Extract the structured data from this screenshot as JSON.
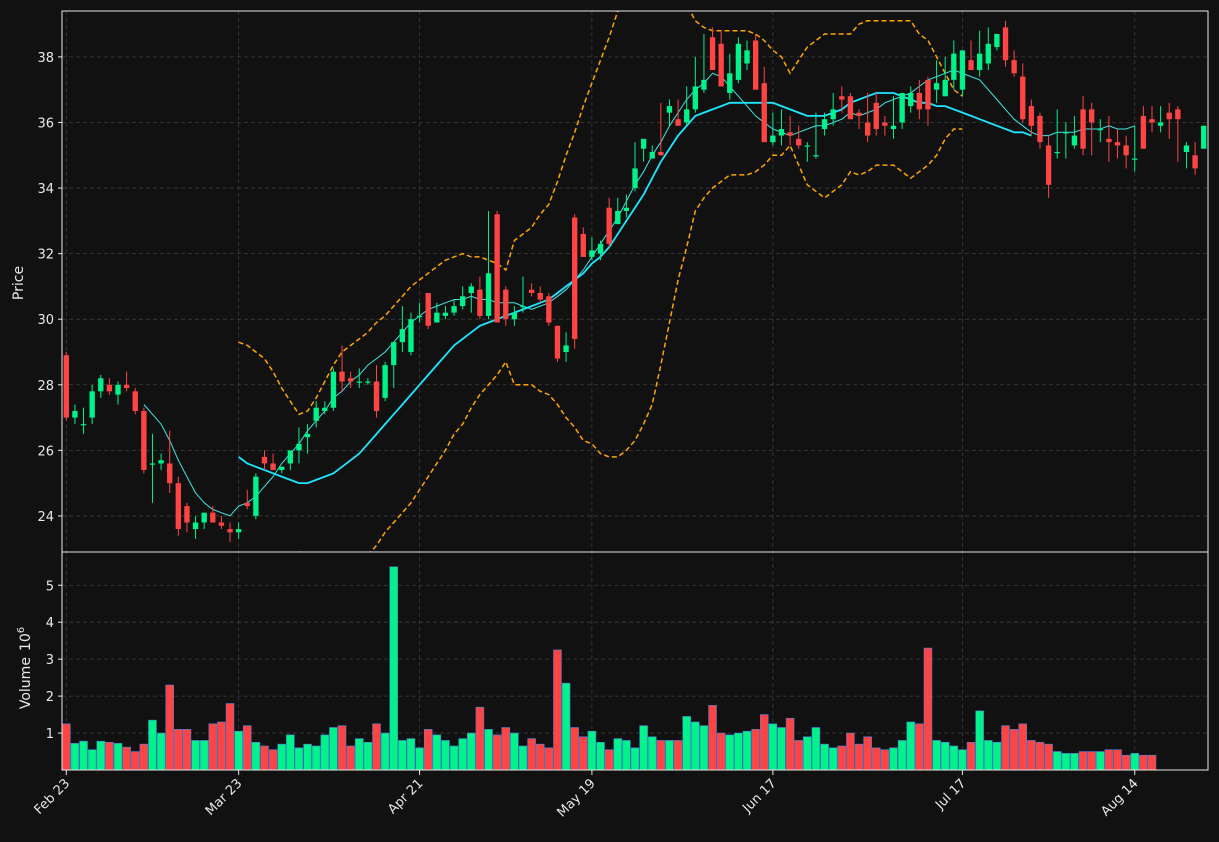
{
  "chart_data": {
    "type": "candlestick",
    "background": "#111111",
    "colors": {
      "up": "#00f28a",
      "down": "#ff4444",
      "volume_edge": "#4a7fd6",
      "mav_fast": "#3ee6e6",
      "mav_slow": "#1ee6ff",
      "bollinger": "#ffa500",
      "grid": "#3c3c3c",
      "text": "#e8e8e8"
    },
    "price_panel": {
      "ylabel": "Price",
      "ylim": [
        22.9,
        39.4
      ],
      "yticks": [
        24,
        26,
        28,
        30,
        32,
        34,
        36,
        38
      ]
    },
    "volume_panel": {
      "ylabel": "Volume",
      "exponent": "6",
      "ylim": [
        0,
        5.9
      ],
      "yticks": [
        1,
        2,
        3,
        4,
        5
      ]
    },
    "xticks": [
      {
        "label": "Feb 23",
        "index": 0
      },
      {
        "label": "Mar 23",
        "index": 20
      },
      {
        "label": "Apr 21",
        "index": 41
      },
      {
        "label": "May 19",
        "index": 61
      },
      {
        "label": "Jun 17",
        "index": 82
      },
      {
        "label": "Jul 17",
        "index": 104
      },
      {
        "label": "Aug 14",
        "index": 124
      }
    ],
    "candles": {
      "open": [
        28.9,
        27.0,
        26.8,
        27.0,
        27.8,
        28.0,
        27.7,
        28.0,
        27.8,
        27.2,
        25.6,
        25.6,
        25.6,
        25.0,
        24.3,
        23.6,
        23.8,
        24.1,
        23.8,
        23.6,
        23.5,
        24.4,
        24.0,
        25.8,
        25.6,
        25.4,
        25.6,
        26.0,
        26.4,
        26.9,
        27.2,
        27.3,
        28.4,
        28.2,
        28.1,
        28.1,
        28.1,
        27.6,
        28.6,
        29.3,
        29.0,
        30.1,
        30.8,
        29.9,
        30.1,
        30.2,
        30.4,
        30.8,
        30.9,
        30.1,
        33.2,
        30.9,
        30.0,
        30.4,
        30.9,
        30.8,
        30.7,
        29.8,
        29.0,
        33.1,
        32.6,
        31.9,
        32.0,
        33.4,
        32.9,
        33.3,
        34.0,
        35.2,
        34.9,
        35.1,
        36.3,
        36.1,
        36.0,
        36.4,
        37.0,
        38.6,
        38.4,
        36.9,
        37.3,
        37.8,
        38.5,
        37.2,
        35.4,
        35.6,
        35.7,
        35.5,
        35.3,
        35.0,
        35.8,
        36.1,
        36.8,
        36.8,
        36.3,
        36.0,
        36.6,
        36.0,
        35.8,
        36.0,
        36.5,
        36.9,
        37.3,
        37.0,
        36.8,
        37.3,
        37.0,
        37.9,
        37.6,
        37.8,
        38.3,
        38.9,
        37.9,
        37.4,
        36.5,
        36.2,
        35.3,
        35.1,
        35.7,
        35.3,
        36.4,
        36.4,
        35.8,
        35.5,
        35.4,
        35.3,
        34.9,
        36.2,
        36.1,
        35.9,
        36.3,
        36.4,
        35.1,
        35.0,
        35.2
      ],
      "high": [
        29.0,
        27.4,
        27.3,
        28.0,
        28.3,
        28.2,
        28.1,
        28.4,
        27.9,
        27.3,
        26.5,
        25.9,
        26.6,
        25.2,
        24.4,
        24.0,
        24.0,
        24.3,
        24.0,
        23.8,
        23.8,
        24.8,
        25.3,
        26.0,
        25.9,
        25.5,
        25.7,
        26.7,
        26.8,
        27.5,
        27.5,
        28.5,
        29.2,
        28.4,
        28.5,
        28.2,
        28.6,
        28.7,
        28.8,
        30.4,
        30.2,
        30.5,
        30.8,
        30.5,
        30.4,
        30.6,
        31.0,
        31.1,
        31.3,
        33.3,
        33.3,
        31.0,
        30.4,
        31.3,
        31.1,
        31.0,
        30.8,
        29.8,
        29.6,
        33.2,
        32.8,
        32.5,
        32.4,
        33.7,
        33.7,
        33.8,
        35.4,
        35.5,
        35.3,
        36.6,
        36.7,
        36.7,
        37.1,
        38.0,
        38.7,
        38.9,
        38.8,
        38.1,
        38.6,
        38.5,
        38.7,
        37.7,
        36.3,
        36.4,
        36.2,
        35.9,
        35.4,
        36.3,
        36.3,
        36.9,
        37.1,
        36.9,
        36.4,
        36.9,
        36.9,
        36.2,
        36.8,
        36.5,
        37.1,
        37.3,
        37.4,
        37.9,
        38.0,
        38.5,
        38.1,
        38.5,
        38.8,
        38.9,
        38.6,
        39.1,
        38.2,
        37.8,
        36.7,
        36.3,
        35.6,
        36.4,
        36.0,
        36.2,
        36.8,
        36.6,
        36.1,
        36.2,
        35.8,
        35.6,
        35.9,
        36.5,
        36.5,
        36.5,
        36.6,
        36.5,
        35.4,
        35.4,
        35.9
      ],
      "low": [
        26.9,
        26.8,
        26.5,
        26.8,
        27.6,
        27.7,
        27.4,
        27.8,
        27.1,
        25.3,
        24.4,
        25.4,
        24.7,
        23.4,
        23.5,
        23.3,
        23.6,
        23.8,
        23.6,
        23.2,
        23.3,
        24.2,
        23.9,
        25.4,
        25.4,
        25.3,
        25.4,
        25.6,
        25.9,
        26.7,
        27.1,
        27.2,
        27.8,
        27.9,
        27.9,
        28.0,
        27.0,
        27.5,
        27.9,
        29.0,
        28.9,
        29.9,
        29.7,
        29.9,
        30.0,
        30.1,
        30.3,
        30.2,
        30.0,
        30.0,
        30.9,
        29.8,
        29.8,
        30.2,
        30.7,
        30.5,
        29.8,
        28.7,
        28.7,
        29.1,
        31.9,
        31.8,
        31.8,
        32.2,
        32.9,
        33.1,
        33.9,
        34.8,
        34.9,
        35.0,
        35.9,
        35.9,
        35.9,
        36.3,
        36.9,
        37.7,
        37.8,
        36.7,
        37.2,
        37.6,
        37.8,
        36.9,
        35.3,
        35.3,
        35.3,
        35.2,
        34.8,
        34.9,
        35.6,
        35.9,
        36.3,
        36.3,
        35.8,
        35.4,
        35.6,
        35.6,
        35.5,
        35.8,
        36.3,
        36.1,
        35.9,
        36.6,
        36.8,
        37.0,
        36.8,
        37.6,
        37.4,
        37.6,
        38.2,
        37.7,
        37.4,
        36.0,
        35.6,
        35.2,
        33.7,
        34.9,
        34.9,
        35.2,
        35.0,
        35.0,
        35.4,
        34.8,
        34.9,
        34.6,
        34.5,
        35.5,
        35.7,
        35.7,
        35.5,
        34.8,
        34.6,
        34.4,
        35.2
      ],
      "close": [
        27.0,
        27.2,
        26.8,
        27.8,
        28.2,
        27.8,
        28.0,
        27.9,
        27.2,
        25.4,
        25.6,
        25.7,
        25.0,
        23.6,
        23.8,
        23.8,
        24.1,
        23.8,
        23.7,
        23.5,
        23.6,
        24.3,
        25.2,
        25.6,
        25.4,
        25.5,
        26.0,
        26.2,
        26.5,
        27.3,
        27.3,
        28.4,
        28.1,
        28.1,
        28.1,
        28.1,
        27.2,
        28.6,
        29.3,
        29.7,
        30.0,
        30.1,
        29.8,
        30.2,
        30.2,
        30.4,
        30.7,
        31.0,
        30.1,
        31.4,
        29.9,
        30.0,
        30.2,
        30.4,
        30.8,
        30.6,
        29.9,
        28.8,
        29.2,
        29.4,
        31.9,
        32.1,
        32.3,
        32.3,
        33.3,
        33.4,
        34.6,
        35.5,
        35.1,
        35.0,
        36.5,
        35.9,
        36.4,
        37.1,
        37.3,
        37.6,
        37.1,
        37.5,
        38.4,
        38.2,
        37.0,
        35.4,
        35.6,
        35.8,
        35.6,
        35.3,
        35.3,
        35.0,
        36.1,
        36.4,
        36.7,
        36.1,
        36.2,
        35.6,
        35.8,
        35.9,
        35.9,
        36.9,
        36.9,
        36.4,
        36.4,
        37.2,
        37.3,
        38.1,
        38.2,
        37.6,
        38.1,
        38.4,
        38.7,
        37.9,
        37.5,
        36.1,
        35.9,
        35.4,
        34.1,
        35.1,
        35.7,
        35.6,
        35.2,
        36.0,
        35.8,
        35.4,
        35.3,
        35.0,
        34.9,
        35.2,
        36.0,
        36.0,
        36.1,
        36.1,
        35.3,
        34.6,
        35.9
      ]
    },
    "volume": [
      1.25,
      0.72,
      0.78,
      0.55,
      0.78,
      0.75,
      0.72,
      0.62,
      0.5,
      0.7,
      1.35,
      1.0,
      2.3,
      1.1,
      1.1,
      0.8,
      0.8,
      1.25,
      1.3,
      1.8,
      1.05,
      1.2,
      0.75,
      0.65,
      0.55,
      0.7,
      0.95,
      0.6,
      0.7,
      0.65,
      0.95,
      1.15,
      1.2,
      0.65,
      0.85,
      0.75,
      1.25,
      1.0,
      5.5,
      0.8,
      0.85,
      0.6,
      1.1,
      0.95,
      0.8,
      0.65,
      0.85,
      1.0,
      1.7,
      1.1,
      0.95,
      1.15,
      1.0,
      0.65,
      0.85,
      0.7,
      0.6,
      3.25,
      2.35,
      1.15,
      0.9,
      1.05,
      0.75,
      0.55,
      0.85,
      0.8,
      0.6,
      1.2,
      0.9,
      0.8,
      0.8,
      0.8,
      1.45,
      1.3,
      1.2,
      1.75,
      1.0,
      0.95,
      1.0,
      1.05,
      1.1,
      1.5,
      1.25,
      1.15,
      1.4,
      0.8,
      0.9,
      1.15,
      0.7,
      0.6,
      0.65,
      1.0,
      0.7,
      0.9,
      0.6,
      0.55,
      0.6,
      0.8,
      1.3,
      1.25,
      3.3,
      0.8,
      0.75,
      0.65,
      0.55,
      0.75,
      1.6,
      0.8,
      0.75,
      1.2,
      1.1,
      1.25,
      0.8,
      0.75,
      0.7,
      0.5,
      0.45,
      0.45,
      0.5,
      0.5,
      0.5,
      0.55,
      0.55,
      0.4,
      0.45,
      0.4,
      0.4
    ],
    "mav_fast": [
      null,
      null,
      null,
      null,
      null,
      null,
      null,
      null,
      null,
      27.4,
      27.1,
      26.8,
      26.3,
      25.7,
      25.2,
      24.7,
      24.4,
      24.2,
      24.1,
      24.0,
      24.3,
      24.4,
      24.6,
      24.9,
      25.2,
      25.6,
      25.9,
      26.2,
      26.6,
      26.9,
      27.2,
      27.6,
      27.8,
      28.1,
      28.3,
      28.6,
      28.8,
      29.0,
      29.3,
      29.6,
      29.9,
      30.1,
      30.3,
      30.4,
      30.5,
      30.6,
      30.6,
      30.7,
      30.6,
      30.6,
      30.5,
      30.5,
      30.5,
      30.4,
      30.3,
      30.4,
      30.5,
      30.7,
      30.9,
      31.2,
      31.5,
      31.9,
      32.3,
      32.7,
      33.1,
      33.6,
      34.1,
      34.5,
      35.0,
      35.4,
      35.9,
      36.3,
      36.7,
      37.0,
      37.2,
      37.5,
      37.4,
      37.1,
      36.8,
      36.5,
      36.2,
      36.0,
      35.8,
      35.7,
      35.6,
      35.7,
      35.8,
      35.9,
      35.9,
      36.0,
      36.1,
      36.3,
      36.2,
      36.3,
      36.4,
      36.6,
      36.7,
      36.8,
      36.9,
      37.1,
      37.3,
      37.4,
      37.5,
      37.6,
      37.5,
      37.4,
      37.3,
      37.0,
      36.7,
      36.4,
      36.1,
      35.9,
      35.7,
      35.6,
      35.6,
      35.7,
      35.7,
      35.7,
      35.8,
      35.8,
      35.8,
      35.9,
      35.8,
      35.8,
      35.9
    ],
    "mav_slow": [
      null,
      null,
      null,
      null,
      null,
      null,
      null,
      null,
      null,
      null,
      null,
      null,
      null,
      null,
      null,
      null,
      null,
      null,
      null,
      null,
      25.8,
      25.6,
      25.5,
      25.4,
      25.3,
      25.2,
      25.1,
      25.0,
      25.0,
      25.1,
      25.2,
      25.3,
      25.5,
      25.7,
      25.9,
      26.2,
      26.5,
      26.8,
      27.1,
      27.4,
      27.7,
      28.0,
      28.3,
      28.6,
      28.9,
      29.2,
      29.4,
      29.6,
      29.8,
      29.9,
      30.0,
      30.1,
      30.2,
      30.3,
      30.4,
      30.5,
      30.6,
      30.8,
      31.0,
      31.2,
      31.4,
      31.7,
      31.9,
      32.2,
      32.6,
      33.0,
      33.4,
      33.8,
      34.3,
      34.8,
      35.2,
      35.6,
      35.9,
      36.2,
      36.3,
      36.4,
      36.5,
      36.6,
      36.6,
      36.6,
      36.6,
      36.6,
      36.6,
      36.5,
      36.4,
      36.3,
      36.2,
      36.2,
      36.2,
      36.3,
      36.4,
      36.6,
      36.7,
      36.8,
      36.9,
      36.9,
      36.9,
      36.8,
      36.7,
      36.6,
      36.6,
      36.5,
      36.5,
      36.4,
      36.3,
      36.2,
      36.1,
      36.0,
      35.9,
      35.8,
      35.7,
      35.7,
      35.6
    ],
    "bollinger_upper": [
      null,
      null,
      null,
      null,
      null,
      null,
      null,
      null,
      null,
      null,
      null,
      null,
      null,
      null,
      null,
      null,
      null,
      null,
      null,
      null,
      29.3,
      29.2,
      29.0,
      28.8,
      28.4,
      27.9,
      27.5,
      27.1,
      27.2,
      27.6,
      28.1,
      28.6,
      29.0,
      29.2,
      29.4,
      29.6,
      29.9,
      30.1,
      30.4,
      30.7,
      31.0,
      31.2,
      31.4,
      31.6,
      31.8,
      31.9,
      32.0,
      31.9,
      31.9,
      31.8,
      31.7,
      31.5,
      32.4,
      32.6,
      32.8,
      33.2,
      33.5,
      34.2,
      35.0,
      35.7,
      36.5,
      37.2,
      37.9,
      38.6,
      39.4,
      40.0,
      40.5,
      40.8,
      41.2,
      41.0,
      40.5,
      40.0,
      39.6,
      39.1,
      38.9,
      38.8,
      38.8,
      38.8,
      38.8,
      38.8,
      38.7,
      38.5,
      38.2,
      38.0,
      37.5,
      37.9,
      38.3,
      38.5,
      38.7,
      38.7,
      38.7,
      38.7,
      39.0,
      39.1,
      39.1,
      39.1,
      39.1,
      39.1,
      39.1,
      38.7,
      38.5,
      38.0,
      37.5,
      37.0,
      36.8
    ]
  }
}
